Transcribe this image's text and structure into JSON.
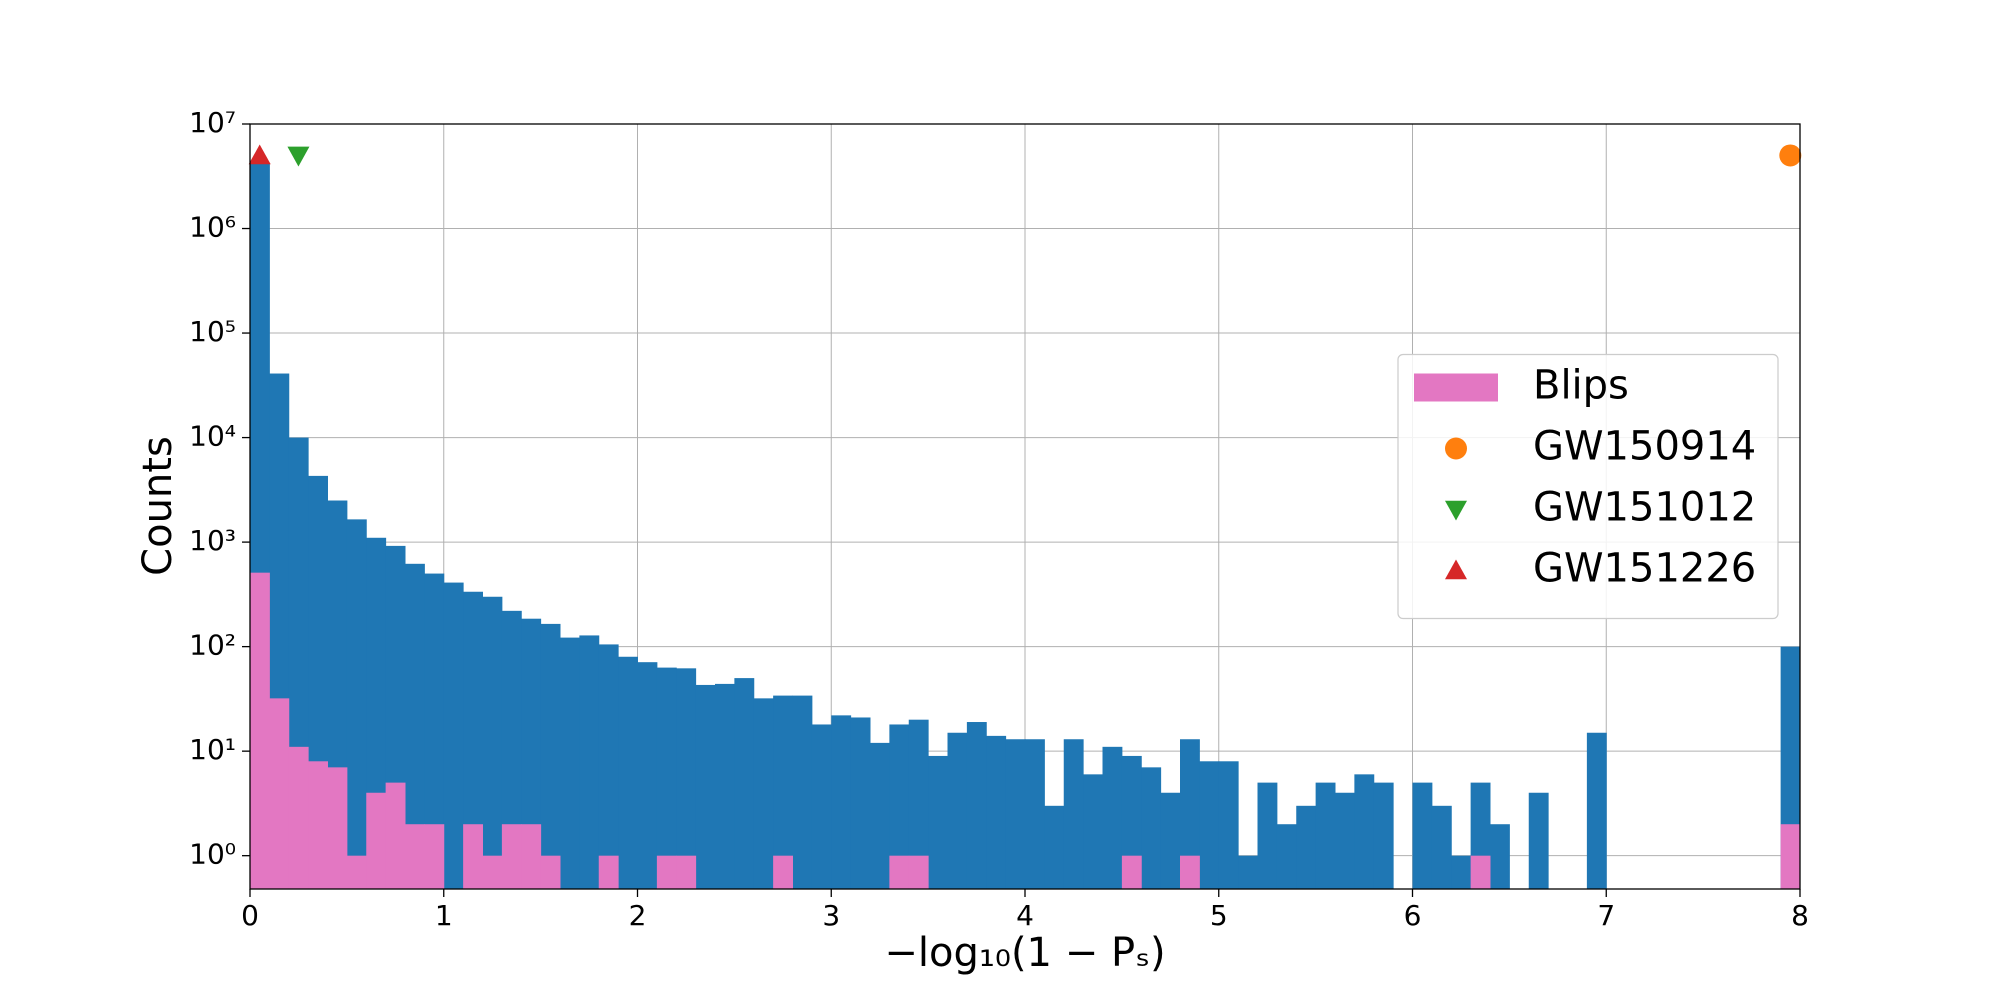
{
  "chart_data": {
    "type": "histogram",
    "xlabel": "−log₁₀(1 − Pₛ)",
    "ylabel": "Counts",
    "log_y": true,
    "grid": true,
    "legend_loc": "center right",
    "bins": [
      0,
      0.1,
      0.2,
      0.3,
      0.4,
      0.5,
      0.6,
      0.7,
      0.8,
      0.9,
      1,
      1.1,
      1.2,
      1.3,
      1.4,
      1.5,
      1.6,
      1.7,
      1.8,
      1.9,
      2,
      2.1,
      2.2,
      2.3,
      2.4,
      2.5,
      2.6,
      2.7,
      2.8,
      2.9,
      3,
      3.1,
      3.2,
      3.3,
      3.4,
      3.5,
      3.6,
      3.7,
      3.8,
      3.9,
      4,
      4.1,
      4.2,
      4.3,
      4.4,
      4.5,
      4.6,
      4.7,
      4.8,
      4.9,
      5,
      5.1,
      5.2,
      5.3,
      5.4,
      5.5,
      5.6,
      5.7,
      5.8,
      5.9,
      6,
      6.1,
      6.2,
      6.3,
      6.4,
      6.5,
      6.6,
      6.7,
      6.8,
      6.9,
      7,
      7.1,
      7.2,
      7.3,
      7.4,
      7.5,
      7.6,
      7.7,
      7.8,
      7.9,
      8
    ],
    "series": [
      {
        "color": "#1f77b4",
        "values": [
          4200000,
          41000,
          10000,
          4300,
          2500,
          1650,
          1100,
          920,
          620,
          500,
          410,
          335,
          300,
          220,
          185,
          165,
          122,
          128,
          105,
          80,
          71,
          63,
          62,
          43,
          44,
          50,
          32,
          34,
          34,
          18,
          22,
          21,
          12,
          18,
          20,
          9,
          15,
          19,
          14,
          13,
          13,
          3,
          13,
          6,
          11,
          9,
          7,
          4,
          13,
          8,
          8,
          1,
          5,
          2,
          3,
          5,
          4,
          6,
          5,
          0,
          5,
          3,
          1,
          5,
          2,
          0,
          4,
          0,
          0,
          15,
          0,
          0,
          0,
          0,
          0,
          0,
          0,
          0,
          0,
          100
        ]
      },
      {
        "name": "Blips",
        "color": "#e377c2",
        "values": [
          510,
          32,
          11,
          8,
          7,
          1,
          4,
          5,
          2,
          2,
          0,
          2,
          1,
          2,
          2,
          1,
          0,
          0,
          1,
          0,
          0,
          1,
          1,
          0,
          0,
          0,
          0,
          1,
          0,
          0,
          0,
          0,
          0,
          1,
          1,
          0,
          0,
          0,
          0,
          0,
          0,
          0,
          0,
          0,
          0,
          1,
          0,
          0,
          1,
          0,
          0,
          0,
          0,
          0,
          0,
          0,
          0,
          0,
          0,
          0,
          0,
          0,
          0,
          1,
          0,
          0,
          0,
          0,
          0,
          0,
          0,
          0,
          0,
          0,
          0,
          0,
          0,
          0,
          0,
          2
        ]
      }
    ],
    "markers": [
      {
        "name": "GW150914",
        "color": "#ff7f0e",
        "marker": "circle",
        "x": 7.95,
        "y": 5000000
      },
      {
        "name": "GW151012",
        "color": "#2ca02c",
        "marker": "triangle-down",
        "x": 0.25,
        "y": 5000000
      },
      {
        "name": "GW151226",
        "color": "#d62728",
        "marker": "triangle-up",
        "x": 0.05,
        "y": 5000000
      }
    ],
    "xlim": [
      0,
      8
    ],
    "xticks": [
      0,
      1,
      2,
      3,
      4,
      5,
      6,
      7,
      8
    ],
    "ylim": [
      0.48,
      10000000
    ],
    "yticks": [
      {
        "value": 1,
        "label": "10⁰"
      },
      {
        "value": 10,
        "label": "10¹"
      },
      {
        "value": 100,
        "label": "10²"
      },
      {
        "value": 1000,
        "label": "10³"
      },
      {
        "value": 10000,
        "label": "10⁴"
      },
      {
        "value": 100000,
        "label": "10⁵"
      },
      {
        "value": 1000000,
        "label": "10⁶"
      },
      {
        "value": 10000000,
        "label": "10⁷"
      }
    ]
  }
}
